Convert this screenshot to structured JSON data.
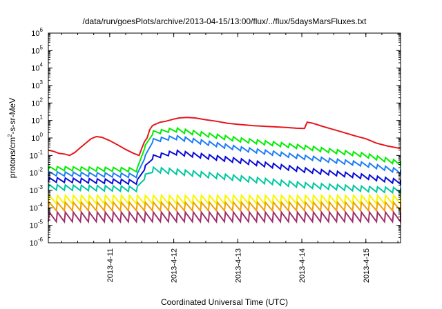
{
  "chart_data": {
    "type": "line",
    "title": "/data/run/goesPlots/archive/2013-04-15/13:00/flux/../flux/5daysMarsFluxes.txt",
    "xlabel": "Coordinated Universal Time (UTC)",
    "ylabel_main": "protons/cm",
    "ylabel_sup": "2",
    "ylabel_rest": "-s-sr-MeV",
    "yscale": "log",
    "ylim": [
      1e-06,
      1000000.0
    ],
    "xlim": [
      "2013-04-10T01:00",
      "2013-04-15T13:00"
    ],
    "grid": false,
    "y_ticks": [
      {
        "value": 1e-06,
        "base": "10",
        "exp": "-6"
      },
      {
        "value": 1e-05,
        "base": "10",
        "exp": "-5"
      },
      {
        "value": 0.0001,
        "base": "10",
        "exp": "-4"
      },
      {
        "value": 0.001,
        "base": "10",
        "exp": "-3"
      },
      {
        "value": 0.01,
        "base": "10",
        "exp": "-2"
      },
      {
        "value": 0.1,
        "base": "10",
        "exp": "-1"
      },
      {
        "value": 1.0,
        "base": "10",
        "exp": "0"
      },
      {
        "value": 10.0,
        "base": "10",
        "exp": "1"
      },
      {
        "value": 100.0,
        "base": "10",
        "exp": "2"
      },
      {
        "value": 1000.0,
        "base": "10",
        "exp": "3"
      },
      {
        "value": 10000.0,
        "base": "10",
        "exp": "4"
      },
      {
        "value": 100000.0,
        "base": "10",
        "exp": "5"
      },
      {
        "value": 1000000.0,
        "base": "10",
        "exp": "6"
      }
    ],
    "x_ticks": [
      {
        "value": "2013-04-11T00:00",
        "label": "2013-4-11"
      },
      {
        "value": "2013-04-12T00:00",
        "label": "2013-4-12"
      },
      {
        "value": "2013-04-13T00:00",
        "label": "2013-4-13"
      },
      {
        "value": "2013-04-14T00:00",
        "label": "2013-4-14"
      },
      {
        "value": "2013-04-15T00:00",
        "label": "2013-4-15"
      }
    ],
    "series": [
      {
        "color": "#e8141c",
        "sawtooth": false,
        "points": [
          [
            "2013-04-10T01:00",
            0.2
          ],
          [
            "2013-04-10T03:00",
            0.17
          ],
          [
            "2013-04-10T05:00",
            0.13
          ],
          [
            "2013-04-10T07:00",
            0.12
          ],
          [
            "2013-04-10T09:00",
            0.1
          ],
          [
            "2013-04-10T11:00",
            0.15
          ],
          [
            "2013-04-10T13:00",
            0.28
          ],
          [
            "2013-04-10T15:00",
            0.5
          ],
          [
            "2013-04-10T17:00",
            0.9
          ],
          [
            "2013-04-10T19:00",
            1.2
          ],
          [
            "2013-04-10T21:00",
            1.1
          ],
          [
            "2013-04-11T00:00",
            0.7
          ],
          [
            "2013-04-11T03:00",
            0.4
          ],
          [
            "2013-04-11T06:00",
            0.22
          ],
          [
            "2013-04-11T09:00",
            0.13
          ],
          [
            "2013-04-11T11:00",
            0.1
          ],
          [
            "2013-04-11T12:00",
            0.25
          ],
          [
            "2013-04-11T13:00",
            0.6
          ],
          [
            "2013-04-11T14:00",
            1.0
          ],
          [
            "2013-04-11T15:00",
            3.0
          ],
          [
            "2013-04-11T16:00",
            5.0
          ],
          [
            "2013-04-11T17:00",
            6.0
          ],
          [
            "2013-04-11T19:00",
            8.0
          ],
          [
            "2013-04-11T21:00",
            9.0
          ],
          [
            "2013-04-12T00:00",
            12.0
          ],
          [
            "2013-04-12T02:00",
            14.0
          ],
          [
            "2013-04-12T05:00",
            15.0
          ],
          [
            "2013-04-12T08:00",
            14.0
          ],
          [
            "2013-04-12T12:00",
            11.0
          ],
          [
            "2013-04-12T16:00",
            9.0
          ],
          [
            "2013-04-12T20:00",
            7.0
          ],
          [
            "2013-04-13T00:00",
            6.0
          ],
          [
            "2013-04-13T06:00",
            5.0
          ],
          [
            "2013-04-13T12:00",
            4.5
          ],
          [
            "2013-04-13T18:00",
            4.0
          ],
          [
            "2013-04-13T22:00",
            3.6
          ],
          [
            "2013-04-14T01:00",
            3.5
          ],
          [
            "2013-04-14T02:00",
            8.0
          ],
          [
            "2013-04-14T04:00",
            7.0
          ],
          [
            "2013-04-14T08:00",
            4.5
          ],
          [
            "2013-04-14T12:00",
            3.0
          ],
          [
            "2013-04-14T16:00",
            2.0
          ],
          [
            "2013-04-14T20:00",
            1.3
          ],
          [
            "2013-04-15T00:00",
            0.9
          ],
          [
            "2013-04-15T04:00",
            0.5
          ],
          [
            "2013-04-15T08:00",
            0.35
          ],
          [
            "2013-04-15T13:00",
            0.25
          ]
        ]
      },
      {
        "color": "#00ee00",
        "sawtooth": true,
        "ratio": 1.7,
        "points": [
          [
            "2013-04-10T01:00",
            0.018
          ],
          [
            "2013-04-11T11:00",
            0.015
          ],
          [
            "2013-04-11T13:00",
            0.3
          ],
          [
            "2013-04-11T16:00",
            2.0
          ],
          [
            "2013-04-12T00:00",
            3.0
          ],
          [
            "2013-04-13T00:00",
            0.8
          ],
          [
            "2013-04-14T00:00",
            0.3
          ],
          [
            "2013-04-15T00:00",
            0.1
          ],
          [
            "2013-04-15T13:00",
            0.035
          ]
        ]
      },
      {
        "color": "#1e7ef5",
        "sawtooth": true,
        "ratio": 1.7,
        "points": [
          [
            "2013-04-10T01:00",
            0.009
          ],
          [
            "2013-04-11T11:00",
            0.007
          ],
          [
            "2013-04-11T13:00",
            0.08
          ],
          [
            "2013-04-11T16:00",
            0.7
          ],
          [
            "2013-04-12T00:00",
            1.1
          ],
          [
            "2013-04-13T00:00",
            0.25
          ],
          [
            "2013-04-14T00:00",
            0.08
          ],
          [
            "2013-04-15T00:00",
            0.03
          ],
          [
            "2013-04-15T13:00",
            0.012
          ]
        ]
      },
      {
        "color": "#0a0ad8",
        "sawtooth": true,
        "ratio": 1.8,
        "points": [
          [
            "2013-04-10T01:00",
            0.004
          ],
          [
            "2013-04-11T11:00",
            0.003
          ],
          [
            "2013-04-11T13:00",
            0.02
          ],
          [
            "2013-04-11T16:00",
            0.08
          ],
          [
            "2013-04-12T00:00",
            0.15
          ],
          [
            "2013-04-13T00:00",
            0.05
          ],
          [
            "2013-04-14T00:00",
            0.015
          ],
          [
            "2013-04-15T00:00",
            0.006
          ],
          [
            "2013-04-15T13:00",
            0.003
          ]
        ]
      },
      {
        "color": "#00c8a0",
        "sawtooth": true,
        "ratio": 2.0,
        "points": [
          [
            "2013-04-10T01:00",
            0.0015
          ],
          [
            "2013-04-11T11:00",
            0.0012
          ],
          [
            "2013-04-11T13:00",
            0.006
          ],
          [
            "2013-04-11T16:00",
            0.015
          ],
          [
            "2013-04-12T00:00",
            0.012
          ],
          [
            "2013-04-13T00:00",
            0.005
          ],
          [
            "2013-04-14T00:00",
            0.002
          ],
          [
            "2013-04-15T00:00",
            0.0012
          ],
          [
            "2013-04-15T13:00",
            0.001
          ]
        ]
      },
      {
        "color": "#f6f600",
        "sawtooth": true,
        "ratio": 3.0,
        "points": [
          [
            "2013-04-10T01:00",
            0.0003
          ],
          [
            "2013-04-15T13:00",
            0.0003
          ]
        ]
      },
      {
        "color": "#f0a000",
        "sawtooth": true,
        "ratio": 3.0,
        "points": [
          [
            "2013-04-10T01:00",
            0.00012
          ],
          [
            "2013-04-15T13:00",
            0.00012
          ]
        ]
      },
      {
        "color": "#a0306a",
        "sawtooth": true,
        "ratio": 3.5,
        "points": [
          [
            "2013-04-10T01:00",
            3e-05
          ],
          [
            "2013-04-15T13:00",
            3e-05
          ]
        ]
      }
    ]
  }
}
